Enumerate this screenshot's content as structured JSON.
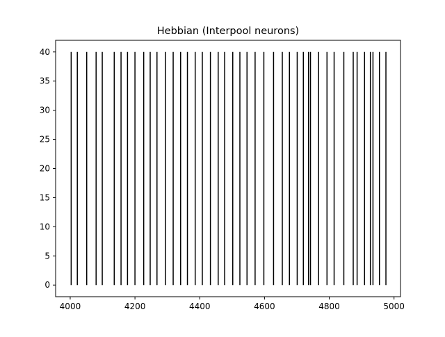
{
  "chart_data": {
    "type": "raster",
    "title": "Hebbian (Interpool neurons)",
    "xlabel": "",
    "ylabel": "",
    "xlim": [
      3955,
      5020
    ],
    "ylim": [
      -2,
      42
    ],
    "xticks": [
      4000,
      4200,
      4400,
      4600,
      4800,
      5000
    ],
    "yticks": [
      0,
      5,
      10,
      15,
      20,
      25,
      30,
      35,
      40
    ],
    "line_color": "#000000",
    "spike_y_range": [
      0,
      40
    ],
    "spike_times": [
      4003,
      4022,
      4051,
      4080,
      4099,
      4136,
      4157,
      4177,
      4200,
      4227,
      4247,
      4268,
      4294,
      4318,
      4341,
      4362,
      4386,
      4408,
      4433,
      4457,
      4477,
      4502,
      4524,
      4546,
      4571,
      4598,
      4628,
      4655,
      4677,
      4701,
      4720,
      4736,
      4742,
      4767,
      4793,
      4815,
      4845,
      4874,
      4886,
      4909,
      4927,
      4935,
      4955,
      4975
    ]
  }
}
